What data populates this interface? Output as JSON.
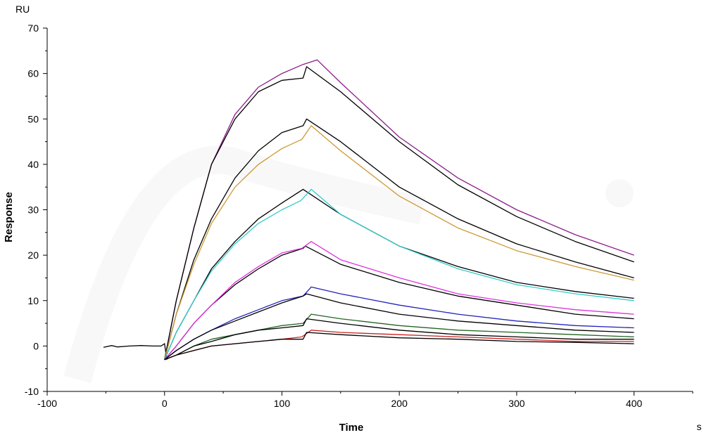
{
  "chart_data": {
    "type": "line",
    "title": "",
    "xlabel": "Time",
    "ylabel": "Response",
    "x_unit": "s",
    "y_unit": "RU",
    "xlim": [
      -100,
      450
    ],
    "ylim": [
      -10,
      70
    ],
    "x_ticks": [
      -100,
      0,
      100,
      200,
      300,
      400
    ],
    "y_ticks": [
      -10,
      0,
      10,
      20,
      30,
      40,
      50,
      60,
      70
    ],
    "grid": false,
    "legend": "none",
    "series": [
      {
        "color": "#8B1E8B",
        "values": [
          [
            0,
            -3
          ],
          [
            10,
            10
          ],
          [
            25,
            26
          ],
          [
            40,
            40
          ],
          [
            60,
            51
          ],
          [
            80,
            57
          ],
          [
            100,
            60
          ],
          [
            118,
            62
          ],
          [
            130,
            63
          ],
          [
            150,
            58
          ],
          [
            200,
            46
          ],
          [
            250,
            37
          ],
          [
            300,
            30
          ],
          [
            350,
            24.5
          ],
          [
            400,
            20
          ]
        ]
      },
      {
        "color": "#000000",
        "values": [
          [
            0,
            -3
          ],
          [
            10,
            10
          ],
          [
            25,
            26
          ],
          [
            40,
            40
          ],
          [
            60,
            50
          ],
          [
            80,
            56
          ],
          [
            100,
            58.5
          ],
          [
            118,
            59
          ],
          [
            121,
            61.5
          ],
          [
            150,
            56
          ],
          [
            200,
            45
          ],
          [
            250,
            35.5
          ],
          [
            300,
            28.5
          ],
          [
            350,
            23
          ],
          [
            400,
            18.5
          ]
        ]
      },
      {
        "color": "#000000",
        "values": [
          [
            0,
            -3
          ],
          [
            10,
            7
          ],
          [
            25,
            19
          ],
          [
            40,
            28
          ],
          [
            60,
            37
          ],
          [
            80,
            43
          ],
          [
            100,
            47
          ],
          [
            118,
            48.5
          ],
          [
            121,
            50
          ],
          [
            150,
            45
          ],
          [
            200,
            35
          ],
          [
            250,
            28
          ],
          [
            300,
            22.5
          ],
          [
            350,
            18.5
          ],
          [
            400,
            15
          ]
        ]
      },
      {
        "color": "#CC9933",
        "values": [
          [
            0,
            -3
          ],
          [
            10,
            7
          ],
          [
            25,
            18
          ],
          [
            40,
            27
          ],
          [
            60,
            35
          ],
          [
            80,
            40
          ],
          [
            100,
            43.5
          ],
          [
            117,
            45.5
          ],
          [
            125,
            48.5
          ],
          [
            150,
            43
          ],
          [
            200,
            33
          ],
          [
            250,
            26
          ],
          [
            300,
            21
          ],
          [
            350,
            17.5
          ],
          [
            400,
            14.5
          ]
        ]
      },
      {
        "color": "#000000",
        "values": [
          [
            0,
            -3
          ],
          [
            10,
            3
          ],
          [
            25,
            10
          ],
          [
            40,
            17
          ],
          [
            60,
            23
          ],
          [
            80,
            28
          ],
          [
            100,
            31.5
          ],
          [
            118,
            34.5
          ],
          [
            150,
            29
          ],
          [
            200,
            22
          ],
          [
            250,
            17.5
          ],
          [
            300,
            14
          ],
          [
            350,
            12
          ],
          [
            400,
            10.5
          ]
        ]
      },
      {
        "color": "#33CCCC",
        "values": [
          [
            0,
            -3
          ],
          [
            10,
            3
          ],
          [
            25,
            10
          ],
          [
            40,
            16.5
          ],
          [
            60,
            22.5
          ],
          [
            80,
            27
          ],
          [
            100,
            30
          ],
          [
            116,
            32
          ],
          [
            125,
            34.5
          ],
          [
            150,
            29
          ],
          [
            200,
            22
          ],
          [
            250,
            17
          ],
          [
            300,
            13.5
          ],
          [
            350,
            11.5
          ],
          [
            400,
            10
          ]
        ]
      },
      {
        "color": "#000000",
        "values": [
          [
            0,
            -3
          ],
          [
            10,
            0
          ],
          [
            25,
            5
          ],
          [
            40,
            9
          ],
          [
            60,
            13.5
          ],
          [
            80,
            17
          ],
          [
            100,
            20
          ],
          [
            118,
            21.5
          ],
          [
            120,
            22
          ],
          [
            150,
            18
          ],
          [
            200,
            14
          ],
          [
            250,
            11
          ],
          [
            300,
            9
          ],
          [
            350,
            7
          ],
          [
            400,
            6
          ]
        ]
      },
      {
        "color": "#DD33DD",
        "values": [
          [
            0,
            -3
          ],
          [
            10,
            0
          ],
          [
            25,
            5
          ],
          [
            40,
            9
          ],
          [
            60,
            14
          ],
          [
            80,
            17.5
          ],
          [
            100,
            20.5
          ],
          [
            117,
            21.5
          ],
          [
            125,
            23
          ],
          [
            150,
            19
          ],
          [
            200,
            15
          ],
          [
            250,
            11.5
          ],
          [
            300,
            9.5
          ],
          [
            350,
            8
          ],
          [
            400,
            7
          ]
        ]
      },
      {
        "color": "#2222BB",
        "values": [
          [
            0,
            -3
          ],
          [
            10,
            -1
          ],
          [
            25,
            1.5
          ],
          [
            40,
            3.5
          ],
          [
            60,
            6
          ],
          [
            80,
            8
          ],
          [
            100,
            10
          ],
          [
            118,
            11
          ],
          [
            125,
            13
          ],
          [
            150,
            11.5
          ],
          [
            200,
            9
          ],
          [
            250,
            7
          ],
          [
            300,
            5.5
          ],
          [
            350,
            4.5
          ],
          [
            400,
            4
          ]
        ]
      },
      {
        "color": "#000000",
        "values": [
          [
            0,
            -3
          ],
          [
            10,
            -1
          ],
          [
            25,
            1.5
          ],
          [
            40,
            3.5
          ],
          [
            60,
            5.5
          ],
          [
            80,
            7.5
          ],
          [
            100,
            9.5
          ],
          [
            118,
            11
          ],
          [
            121,
            11.5
          ],
          [
            150,
            9.5
          ],
          [
            200,
            7
          ],
          [
            250,
            5.5
          ],
          [
            300,
            4.5
          ],
          [
            350,
            3.5
          ],
          [
            400,
            3
          ]
        ]
      },
      {
        "color": "#226622",
        "values": [
          [
            0,
            -3
          ],
          [
            10,
            -2
          ],
          [
            25,
            0
          ],
          [
            40,
            1.5
          ],
          [
            60,
            2.5
          ],
          [
            80,
            3.5
          ],
          [
            100,
            4.5
          ],
          [
            118,
            5
          ],
          [
            125,
            7
          ],
          [
            150,
            6
          ],
          [
            200,
            4.5
          ],
          [
            250,
            3.5
          ],
          [
            300,
            3
          ],
          [
            350,
            2.5
          ],
          [
            400,
            2
          ]
        ]
      },
      {
        "color": "#000000",
        "values": [
          [
            0,
            -3
          ],
          [
            10,
            -2
          ],
          [
            25,
            0
          ],
          [
            40,
            1
          ],
          [
            60,
            2.5
          ],
          [
            80,
            3.5
          ],
          [
            100,
            4
          ],
          [
            118,
            4.5
          ],
          [
            121,
            6
          ],
          [
            150,
            5
          ],
          [
            200,
            3.5
          ],
          [
            250,
            2.5
          ],
          [
            300,
            2
          ],
          [
            350,
            1.5
          ],
          [
            400,
            1.5
          ]
        ]
      },
      {
        "color": "#CC2222",
        "values": [
          [
            0,
            -3
          ],
          [
            10,
            -2
          ],
          [
            25,
            -1
          ],
          [
            40,
            0
          ],
          [
            60,
            0.5
          ],
          [
            80,
            1
          ],
          [
            100,
            1.5
          ],
          [
            117,
            2
          ],
          [
            125,
            3.5
          ],
          [
            150,
            3
          ],
          [
            200,
            2.5
          ],
          [
            250,
            2
          ],
          [
            300,
            1.5
          ],
          [
            350,
            1
          ],
          [
            400,
            1
          ]
        ]
      },
      {
        "color": "#000000",
        "values": [
          [
            0,
            -3
          ],
          [
            10,
            -2
          ],
          [
            25,
            -1
          ],
          [
            40,
            0
          ],
          [
            60,
            0.5
          ],
          [
            80,
            1
          ],
          [
            100,
            1.5
          ],
          [
            118,
            1.5
          ],
          [
            121,
            3
          ],
          [
            150,
            2.5
          ],
          [
            200,
            1.8
          ],
          [
            250,
            1.5
          ],
          [
            300,
            1
          ],
          [
            350,
            0.8
          ],
          [
            400,
            0.5
          ]
        ]
      }
    ],
    "baseline": {
      "color": "#000000",
      "values": [
        [
          -52,
          -0.3
        ],
        [
          -45,
          0.1
        ],
        [
          -40,
          -0.2
        ],
        [
          -30,
          0
        ],
        [
          -20,
          0.1
        ],
        [
          -10,
          0
        ],
        [
          -3,
          0
        ],
        [
          0,
          0.5
        ],
        [
          2,
          -3
        ]
      ]
    }
  }
}
